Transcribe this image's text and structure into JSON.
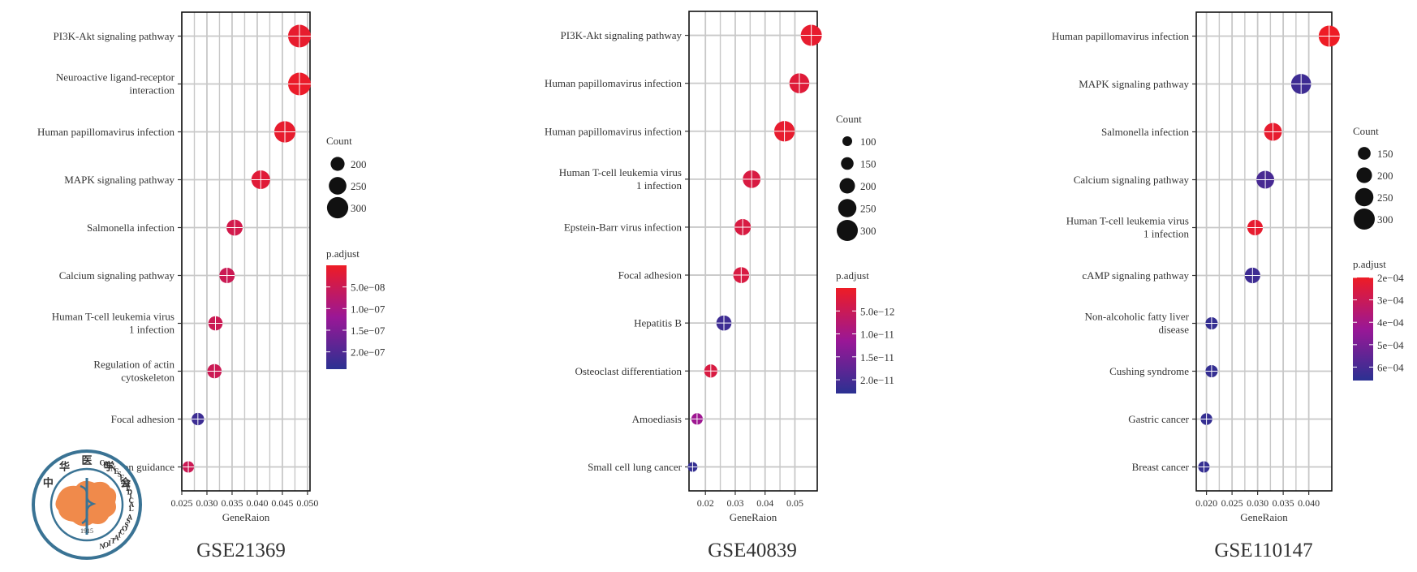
{
  "colors": {
    "high": "#ee1c25",
    "mid": "#9a1796",
    "low": "#2b3192",
    "grid": "#c8c8c8",
    "logo": "#3a7394",
    "logo_fill": "#f08a4b"
  },
  "logo": {
    "chars": [
      "中",
      "华",
      "医",
      "学",
      "会"
    ],
    "ring_text": "CHINESE MEDICAL ASSOCIATION",
    "year": "1915"
  },
  "chart_data": [
    {
      "type": "scatter",
      "title": "GSE21369",
      "xlabel": "GeneRaion",
      "xlim": [
        0.025,
        0.0505
      ],
      "xticks": [
        0.025,
        0.03,
        0.035,
        0.04,
        0.045,
        0.05
      ],
      "xtick_labels": [
        "0.025",
        "0.030",
        "0.035",
        "0.040",
        "0.045",
        "0.050"
      ],
      "terms": [
        "PI3K-Akt signaling pathway",
        "Neuroactive ligand-receptor interaction",
        "Human papillomavirus infection",
        "MAPK signaling pathway",
        "Salmonella infection",
        "Calcium signaling pathway",
        "Human T-cell leukemia virus 1 infection",
        "Regulation of actin cytoskeleton",
        "Focal adhesion",
        "Axon guidance"
      ],
      "gene_ratio": [
        0.0484,
        0.0484,
        0.0455,
        0.0407,
        0.0355,
        0.034,
        0.0317,
        0.0315,
        0.0282,
        0.0263
      ],
      "count": [
        320,
        320,
        300,
        265,
        230,
        220,
        205,
        205,
        180,
        165
      ],
      "p_adjust": [
        1e-08,
        5e-09,
        1e-08,
        2e-08,
        4e-08,
        5e-08,
        5e-08,
        5e-08,
        2.2e-07,
        5e-08
      ],
      "size_legend": {
        "title": "Count",
        "values": [
          200,
          250,
          300
        ],
        "labels": [
          "200",
          "250",
          "300"
        ]
      },
      "color_legend": {
        "title": "p.adjust",
        "range": [
          0,
          2.4e-07
        ],
        "ticks": [
          5e-08,
          1e-07,
          1.5e-07,
          2e-07
        ],
        "labels": [
          "5.0e−08",
          "1.0e−07",
          "1.5e−07",
          "2.0e−07"
        ]
      }
    },
    {
      "type": "scatter",
      "title": "GSE40839",
      "xlabel": "GeneRaion",
      "xlim": [
        0.0145,
        0.0575
      ],
      "xticks": [
        0.02,
        0.03,
        0.04,
        0.05
      ],
      "xtick_labels": [
        "0.02",
        "0.03",
        "0.04",
        "0.05"
      ],
      "terms": [
        "PI3K-Akt signaling pathway",
        "Human papillomavirus infection",
        "Human papillomavirus infection",
        "Human T-cell leukemia virus 1 infection",
        "Epstein-Barr virus infection",
        "Focal adhesion",
        "Hepatitis B",
        "Osteoclast differentiation",
        "Amoediasis",
        "Small cell lung cancer"
      ],
      "gene_ratio": [
        0.0555,
        0.0515,
        0.0465,
        0.0355,
        0.0325,
        0.032,
        0.0262,
        0.0218,
        0.0172,
        0.0157
      ],
      "count": [
        300,
        280,
        290,
        240,
        215,
        210,
        195,
        160,
        130,
        100
      ],
      "p_adjust": [
        1e-12,
        2e-12,
        1e-12,
        3e-12,
        3e-12,
        3e-12,
        2.1e-11,
        3e-12,
        1.1e-11,
        2.2e-11
      ],
      "size_legend": {
        "title": "Count",
        "values": [
          100,
          150,
          200,
          250,
          300
        ],
        "labels": [
          "100",
          "150",
          "200",
          "250",
          "300"
        ]
      },
      "color_legend": {
        "title": "p.adjust",
        "range": [
          0,
          2.3e-11
        ],
        "ticks": [
          5e-12,
          1e-11,
          1.5e-11,
          2e-11
        ],
        "labels": [
          "5.0e−12",
          "1.0e−11",
          "1.5e−11",
          "2.0e−11"
        ]
      }
    },
    {
      "type": "scatter",
      "title": "GSE110147",
      "xlabel": "GeneRaion",
      "xlim": [
        0.018,
        0.0445
      ],
      "xticks": [
        0.02,
        0.025,
        0.03,
        0.035,
        0.04
      ],
      "xtick_labels": [
        "0.020",
        "0.025",
        "0.030",
        "0.035",
        "0.040"
      ],
      "terms": [
        "Human papillomavirus infection",
        "MAPK signaling pathway",
        "Salmonella infection",
        "Calcium signaling pathway",
        "Human T-cell leukemia virus 1 infection",
        "cAMP signaling pathway",
        "Non-alcoholic fatty liver disease",
        "Cushing syndrome",
        "Gastric cancer",
        "Breast cancer"
      ],
      "gene_ratio": [
        0.044,
        0.0385,
        0.033,
        0.0315,
        0.0295,
        0.029,
        0.021,
        0.021,
        0.02,
        0.0195
      ],
      "count": [
        300,
        280,
        240,
        240,
        200,
        200,
        140,
        140,
        130,
        125
      ],
      "p_adjust": [
        0.0002,
        0.00062,
        0.00022,
        0.0006,
        0.00022,
        0.00062,
        0.00064,
        0.00064,
        0.00064,
        0.00064
      ],
      "size_legend": {
        "title": "Count",
        "values": [
          150,
          200,
          250,
          300
        ],
        "labels": [
          "150",
          "200",
          "250",
          "300"
        ]
      },
      "color_legend": {
        "title": "p.adjust",
        "range": [
          0.0002,
          0.00066
        ],
        "ticks": [
          0.0002,
          0.0003,
          0.0004,
          0.0005,
          0.0006
        ],
        "labels": [
          "2e−04",
          "3e−04",
          "4e−04",
          "5e−04",
          "6e−04"
        ]
      }
    }
  ]
}
